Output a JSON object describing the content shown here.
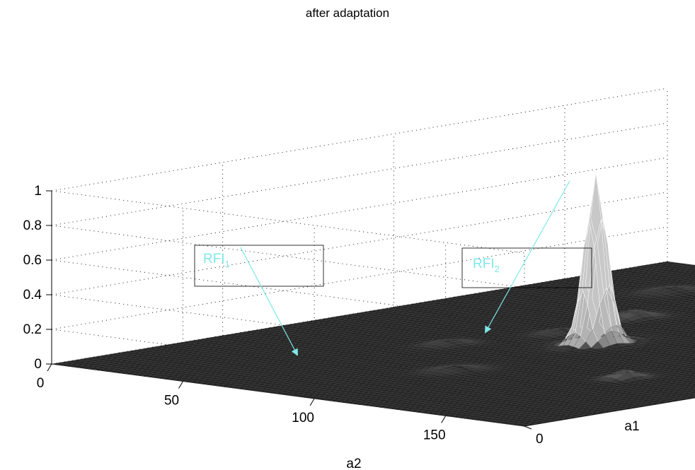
{
  "chart_data": {
    "type": "surface",
    "title": "after adaptation",
    "xlabel": "a1",
    "ylabel": "a2",
    "zlabel": "",
    "x_ticks": [
      0,
      50,
      100,
      150
    ],
    "y_ticks": [
      0,
      50,
      100,
      150
    ],
    "z_ticks": [
      0,
      0.2,
      0.4,
      0.6,
      0.8,
      1
    ],
    "xlim": [
      0,
      180
    ],
    "ylim": [
      0,
      180
    ],
    "zlim": [
      0,
      1
    ],
    "grid": true,
    "main_peak": {
      "a1": 90,
      "a2": 90,
      "value": 0.95
    },
    "annotations": [
      {
        "label": "RFI",
        "subscript": "1"
      },
      {
        "label": "RFI",
        "subscript": "2"
      }
    ],
    "colors": {
      "surface_edge": "#ffffff",
      "surface_face": "#1e1e1e",
      "arrow": "#7fe8e8"
    }
  }
}
